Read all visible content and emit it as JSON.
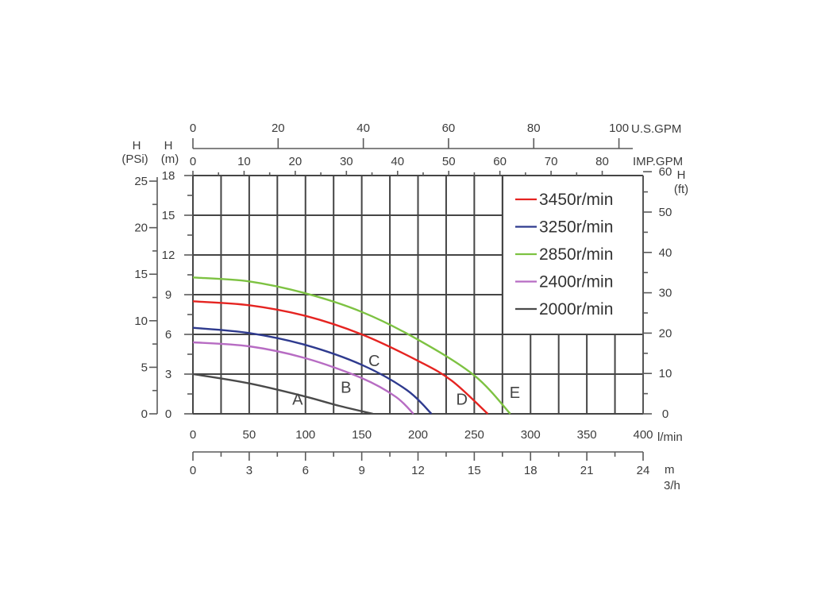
{
  "chart_data": {
    "type": "line",
    "x_unit": "l/min",
    "x_ticks": [
      0,
      50,
      100,
      150,
      200,
      250,
      300,
      350,
      400
    ],
    "y_unit": "H (m)",
    "y_ticks": [
      0,
      3,
      6,
      9,
      12,
      15,
      18
    ],
    "xlim": [
      0,
      400
    ],
    "ylim": [
      0,
      18
    ],
    "grid": true,
    "legend_position": "top-right",
    "left_axis": {
      "label_top": "H",
      "label_bottom": "(PSi)",
      "ticks": [
        0,
        5,
        10,
        15,
        20,
        25
      ]
    },
    "left_axis_m": {
      "label_top": "H",
      "label_bottom": "(m)"
    },
    "right_axis": {
      "label_top": "H",
      "label_bottom": "(ft)",
      "ticks": [
        0,
        10,
        20,
        30,
        40,
        50,
        60
      ]
    },
    "top_axis_usgpm": {
      "unit": "U.S.GPM",
      "ticks": [
        0,
        20,
        40,
        60,
        80,
        100
      ]
    },
    "top_axis_impgpm": {
      "unit": "IMP.GPM",
      "ticks": [
        0,
        10,
        20,
        30,
        40,
        50,
        60,
        70,
        80
      ]
    },
    "bottom_axis_m3h": {
      "unit_top": "m",
      "unit_bottom": "3/h",
      "ticks": [
        0,
        3,
        6,
        9,
        12,
        15,
        18,
        21,
        24
      ]
    },
    "series": [
      {
        "name": "3450r/min",
        "color": "#e52421",
        "x": [
          0,
          50,
          100,
          150,
          200,
          230,
          262
        ],
        "y": [
          8.5,
          8.2,
          7.4,
          6.0,
          4.0,
          2.5,
          0
        ]
      },
      {
        "name": "3250r/min",
        "color": "#2e3a8e",
        "x": [
          0,
          50,
          100,
          150,
          190,
          212
        ],
        "y": [
          6.5,
          6.1,
          5.2,
          3.7,
          1.8,
          0
        ]
      },
      {
        "name": "2850r/min",
        "color": "#7dc242",
        "x": [
          0,
          50,
          100,
          150,
          200,
          250,
          282
        ],
        "y": [
          10.3,
          10.0,
          9.1,
          7.7,
          5.6,
          2.9,
          0
        ]
      },
      {
        "name": "2400r/min",
        "color": "#b76cc3",
        "x": [
          0,
          50,
          100,
          150,
          180,
          196
        ],
        "y": [
          5.4,
          5.1,
          4.2,
          2.7,
          1.3,
          0
        ]
      },
      {
        "name": "2000r/min",
        "color": "#4a4a4a",
        "x": [
          0,
          50,
          100,
          130,
          160
        ],
        "y": [
          3.0,
          2.3,
          1.3,
          0.6,
          0
        ]
      }
    ],
    "curve_labels": [
      {
        "text": "A",
        "x": 93,
        "y": 0.7
      },
      {
        "text": "B",
        "x": 136,
        "y": 1.6
      },
      {
        "text": "C",
        "x": 161,
        "y": 3.6
      },
      {
        "text": "D",
        "x": 239,
        "y": 0.7
      },
      {
        "text": "E",
        "x": 286,
        "y": 1.2
      }
    ]
  }
}
